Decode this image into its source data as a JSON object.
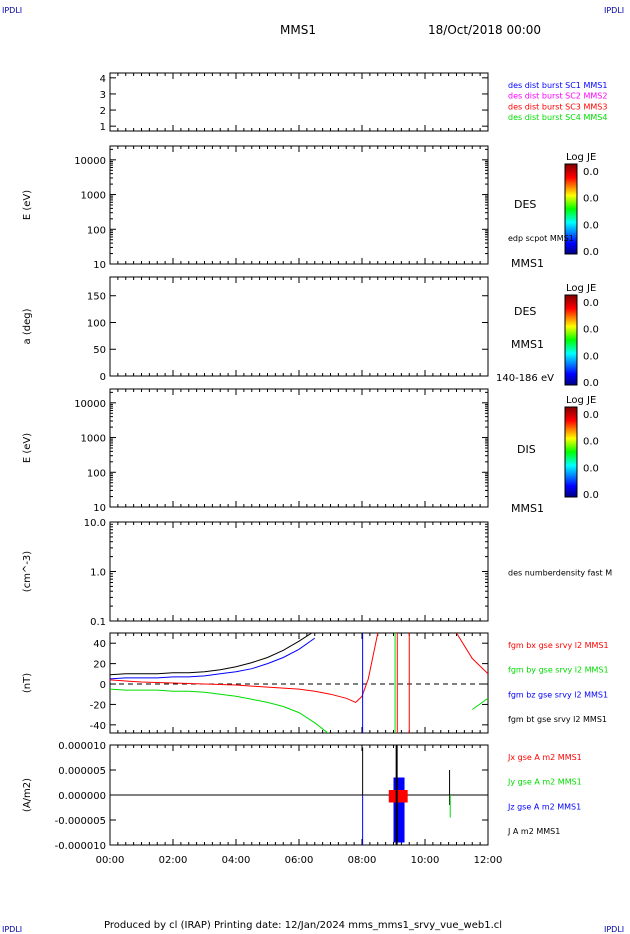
{
  "corners": {
    "top_left": "IPDLI",
    "top_right": "IPDLI",
    "bottom_left": "IPDLI",
    "bottom_right": "IPDLI"
  },
  "header": {
    "spacecraft": "MMS1",
    "date": "18/Oct/2018 00:00"
  },
  "footer": {
    "text": "Produced by cl (IRAP)   Printing date: 12/Jan/2024   mms_mms1_srvy_vue_web1.cl"
  },
  "colors": {
    "blue": "#0000ff",
    "magenta": "#ff00ff",
    "red": "#ff0000",
    "green": "#00dd00",
    "black": "#000000"
  },
  "chart_data": [
    {
      "id": "burst",
      "type": "line",
      "yticks": [
        "1",
        "2",
        "3",
        "4"
      ],
      "ylim": [
        0.7,
        4.3
      ],
      "legend": [
        {
          "text": "des dist burst SC1 MMS1",
          "color": "#0000ff"
        },
        {
          "text": "des dist burst SC2 MMS2",
          "color": "#ff00ff"
        },
        {
          "text": "des dist burst SC3 MMS3",
          "color": "#ff0000"
        },
        {
          "text": "des dist burst SC4 MMS4",
          "color": "#00dd00"
        }
      ]
    },
    {
      "id": "des_energy",
      "type": "heatmap",
      "ylabel": "E (eV)",
      "scale": "log",
      "yticks": [
        "10",
        "100",
        "1000",
        "10000"
      ],
      "ylim": [
        10,
        25000
      ],
      "labels": [
        "DES",
        "edp scpot MMS1",
        "MMS1"
      ],
      "colorbar": {
        "title": "Log JE",
        "ticks": [
          "0.0",
          "0.0",
          "0.0",
          "0.0"
        ]
      }
    },
    {
      "id": "des_pitch",
      "type": "heatmap",
      "ylabel": "a (deg)",
      "yticks": [
        "0",
        "50",
        "100",
        "150"
      ],
      "ylim": [
        0,
        185
      ],
      "labels": [
        "DES",
        "MMS1",
        "140-186 eV"
      ],
      "colorbar": {
        "title": "Log JE",
        "ticks": [
          "0.0",
          "0.0",
          "0.0",
          "0.0"
        ]
      }
    },
    {
      "id": "dis_energy",
      "type": "heatmap",
      "ylabel": "E (eV)",
      "scale": "log",
      "yticks": [
        "10",
        "100",
        "1000",
        "10000"
      ],
      "ylim": [
        10,
        25000
      ],
      "labels": [
        "DIS",
        "MMS1"
      ],
      "colorbar": {
        "title": "Log JE",
        "ticks": [
          "0.0",
          "0.0",
          "0.0",
          "0.0"
        ]
      }
    },
    {
      "id": "density",
      "type": "line",
      "ylabel": "(cm^-3)",
      "scale": "log",
      "yticks": [
        "0.1",
        "1.0",
        "10.0"
      ],
      "ylim": [
        0.1,
        10
      ],
      "legend": [
        {
          "text": "des numberdensity fast M",
          "color": "#000000"
        }
      ]
    },
    {
      "id": "fgm",
      "type": "line",
      "ylabel": "(nT)",
      "yticks": [
        "-40",
        "-20",
        "0",
        "20",
        "40"
      ],
      "ylim": [
        -48,
        50
      ],
      "legend": [
        {
          "text": "fgm bx gse srvy l2 MMS1",
          "color": "#ff0000"
        },
        {
          "text": "fgm by gse srvy l2 MMS1",
          "color": "#00dd00"
        },
        {
          "text": "fgm bz gse srvy l2 MMS1",
          "color": "#0000ff"
        },
        {
          "text": "fgm bt gse srvy l2 MMS1",
          "color": "#000000"
        }
      ],
      "x": [
        0,
        0.5,
        1,
        1.5,
        2,
        2.5,
        3,
        3.5,
        4,
        4.5,
        5,
        5.5,
        6,
        6.5,
        7,
        7.5,
        7.8,
        8,
        8.2,
        8.5,
        9,
        9.5,
        10,
        10.5,
        11,
        11.5,
        12
      ],
      "series": [
        {
          "name": "fgm bx gse srvy l2 MMS1",
          "color": "#ff0000",
          "values": [
            4,
            3,
            2,
            1.5,
            1,
            0.5,
            0,
            -0.5,
            -1,
            -2,
            -3,
            -4,
            -5,
            -7,
            -10,
            -14,
            -18,
            -12,
            5,
            50,
            null,
            null,
            null,
            null,
            50,
            25,
            10
          ]
        },
        {
          "name": "fgm by gse srvy l2 MMS1",
          "color": "#00dd00",
          "values": [
            -5,
            -6,
            -6,
            -6,
            -7,
            -7,
            -8,
            -10,
            -12,
            -15,
            -18,
            -22,
            -28,
            -38,
            -50,
            null,
            null,
            null,
            null,
            null,
            null,
            null,
            null,
            null,
            null,
            -25,
            -14
          ]
        },
        {
          "name": "fgm bz gse srvy l2 MMS1",
          "color": "#0000ff",
          "values": [
            5,
            6,
            6,
            6,
            7,
            7,
            8,
            10,
            12,
            15,
            20,
            26,
            34,
            45,
            null,
            null,
            null,
            null,
            null,
            null,
            null,
            null,
            null,
            null,
            null,
            null,
            null
          ]
        },
        {
          "name": "fgm bt gse srvy l2 MMS1",
          "color": "#000000",
          "values": [
            9,
            10,
            10,
            10,
            11,
            11,
            12,
            14,
            17,
            21,
            26,
            33,
            42,
            52,
            null,
            null,
            null,
            null,
            null,
            null,
            null,
            null,
            null,
            null,
            null,
            null,
            null
          ]
        }
      ]
    },
    {
      "id": "current",
      "type": "line",
      "ylabel": "(A/m2)",
      "yticks": [
        "-0.000010",
        "-0.000005",
        "0.000000",
        "0.000005",
        "0.000010"
      ],
      "ylim": [
        -1e-05,
        1e-05
      ],
      "legend": [
        {
          "text": "Jx gse A m2 MMS1",
          "color": "#ff0000"
        },
        {
          "text": "Jy gse A m2 MMS1",
          "color": "#00dd00"
        },
        {
          "text": "Jz gse A m2 MMS1",
          "color": "#0000ff"
        },
        {
          "text": "J A m2 MMS1",
          "color": "#000000"
        }
      ]
    }
  ],
  "xaxis": {
    "ticks": [
      "00:00",
      "02:00",
      "04:00",
      "06:00",
      "08:00",
      "10:00",
      "12:00"
    ],
    "xlim": [
      0,
      12
    ]
  }
}
